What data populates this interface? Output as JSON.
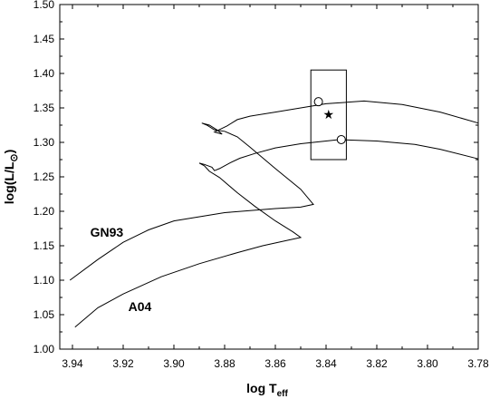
{
  "chart_data": {
    "type": "line",
    "title": "",
    "xlabel": "log T",
    "xlabel_sub": "eff",
    "ylabel": "log(L/L",
    "ylabel_sub": "⊙",
    "ylabel_close": ")",
    "xlim": [
      3.945,
      3.78
    ],
    "ylim": [
      1.0,
      1.5
    ],
    "x_reversed": true,
    "x_ticks": [
      "3.94",
      "3.92",
      "3.90",
      "3.88",
      "3.86",
      "3.84",
      "3.82",
      "3.80",
      "3.78"
    ],
    "y_ticks": [
      "1.00",
      "1.05",
      "1.10",
      "1.15",
      "1.20",
      "1.25",
      "1.30",
      "1.35",
      "1.40",
      "1.45",
      "1.50"
    ],
    "grid": false,
    "series": [
      {
        "name": "GN93",
        "points": [
          [
            3.941,
            1.1
          ],
          [
            3.93,
            1.13
          ],
          [
            3.92,
            1.155
          ],
          [
            3.91,
            1.173
          ],
          [
            3.9,
            1.186
          ],
          [
            3.88,
            1.198
          ],
          [
            3.86,
            1.204
          ],
          [
            3.85,
            1.206
          ],
          [
            3.845,
            1.21
          ],
          [
            3.85,
            1.232
          ],
          [
            3.86,
            1.262
          ],
          [
            3.87,
            1.293
          ],
          [
            3.875,
            1.308
          ],
          [
            3.88,
            1.316
          ],
          [
            3.884,
            1.318
          ],
          [
            3.887,
            1.325
          ],
          [
            3.889,
            1.328
          ],
          [
            3.886,
            1.325
          ],
          [
            3.883,
            1.318
          ],
          [
            3.881,
            1.312
          ],
          [
            3.884,
            1.315
          ],
          [
            3.879,
            1.324
          ],
          [
            3.875,
            1.333
          ],
          [
            3.87,
            1.338
          ],
          [
            3.86,
            1.344
          ],
          [
            3.84,
            1.356
          ],
          [
            3.825,
            1.36
          ],
          [
            3.81,
            1.355
          ],
          [
            3.795,
            1.344
          ],
          [
            3.78,
            1.328
          ]
        ]
      },
      {
        "name": "A04",
        "points": [
          [
            3.939,
            1.032
          ],
          [
            3.93,
            1.06
          ],
          [
            3.92,
            1.08
          ],
          [
            3.905,
            1.105
          ],
          [
            3.89,
            1.124
          ],
          [
            3.875,
            1.14
          ],
          [
            3.865,
            1.15
          ],
          [
            3.855,
            1.158
          ],
          [
            3.85,
            1.162
          ],
          [
            3.853,
            1.17
          ],
          [
            3.86,
            1.186
          ],
          [
            3.868,
            1.207
          ],
          [
            3.875,
            1.227
          ],
          [
            3.882,
            1.249
          ],
          [
            3.886,
            1.258
          ],
          [
            3.888,
            1.266
          ],
          [
            3.89,
            1.27
          ],
          [
            3.888,
            1.268
          ],
          [
            3.885,
            1.264
          ],
          [
            3.884,
            1.259
          ],
          [
            3.882,
            1.262
          ],
          [
            3.878,
            1.27
          ],
          [
            3.874,
            1.277
          ],
          [
            3.868,
            1.284
          ],
          [
            3.86,
            1.292
          ],
          [
            3.85,
            1.298
          ],
          [
            3.835,
            1.304
          ],
          [
            3.82,
            1.302
          ],
          [
            3.805,
            1.297
          ],
          [
            3.795,
            1.29
          ],
          [
            3.78,
            1.276
          ]
        ]
      }
    ],
    "markers": [
      {
        "shape": "circle",
        "x": 3.843,
        "y": 1.359
      },
      {
        "shape": "circle",
        "x": 3.834,
        "y": 1.304
      },
      {
        "shape": "star",
        "x": 3.839,
        "y": 1.341
      }
    ],
    "box": {
      "x": [
        3.846,
        3.832
      ],
      "y": [
        1.275,
        1.405
      ]
    },
    "annotations": [
      {
        "text": "GN93",
        "x": 3.933,
        "y": 1.163
      },
      {
        "text": "A04",
        "x": 3.918,
        "y": 1.055
      }
    ]
  }
}
